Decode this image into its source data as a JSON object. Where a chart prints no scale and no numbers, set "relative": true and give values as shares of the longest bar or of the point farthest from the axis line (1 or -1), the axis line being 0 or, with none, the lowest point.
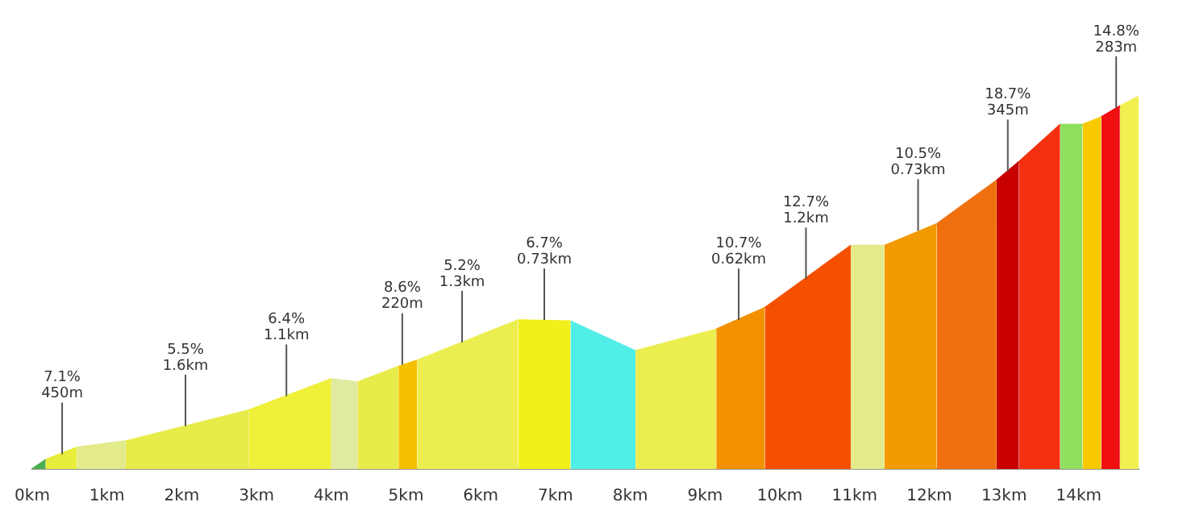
{
  "chart_data": {
    "type": "area",
    "relative": true,
    "legend": false,
    "grid": false,
    "xlim": [
      0,
      14.8
    ],
    "xticks": [
      {
        "value": 0,
        "label": "0km"
      },
      {
        "value": 1,
        "label": "1km"
      },
      {
        "value": 2,
        "label": "2km"
      },
      {
        "value": 3,
        "label": "3km"
      },
      {
        "value": 4,
        "label": "4km"
      },
      {
        "value": 5,
        "label": "5km"
      },
      {
        "value": 6,
        "label": "6km"
      },
      {
        "value": 7,
        "label": "7km"
      },
      {
        "value": 8,
        "label": "8km"
      },
      {
        "value": 9,
        "label": "9km"
      },
      {
        "value": 10,
        "label": "10km"
      },
      {
        "value": 11,
        "label": "11km"
      },
      {
        "value": 12,
        "label": "12km"
      },
      {
        "value": 13,
        "label": "13km"
      },
      {
        "value": 14,
        "label": "14km"
      }
    ],
    "series": [
      {
        "color": "#4caf50",
        "x": [
          0,
          0.18
        ],
        "values": [
          0,
          0.025
        ]
      },
      {
        "color": "#e8ec3a",
        "x": [
          0.18,
          0.6
        ],
        "values": [
          0.025,
          0.058
        ]
      },
      {
        "color": "#e2ea8a",
        "x": [
          0.6,
          1.25
        ],
        "values": [
          0.058,
          0.075
        ]
      },
      {
        "color": "#e8ec4a",
        "x": [
          1.25,
          2.9
        ],
        "values": [
          0.075,
          0.158
        ]
      },
      {
        "color": "#eef03a",
        "x": [
          2.9,
          4.0
        ],
        "values": [
          0.158,
          0.242
        ]
      },
      {
        "color": "#e0eaa0",
        "x": [
          4.0,
          4.35
        ],
        "values": [
          0.242,
          0.233
        ]
      },
      {
        "color": "#e8ec4a",
        "x": [
          4.35,
          4.9
        ],
        "values": [
          0.233,
          0.275
        ]
      },
      {
        "color": "#f5c000",
        "x": [
          4.9,
          5.15
        ],
        "values": [
          0.275,
          0.292
        ]
      },
      {
        "color": "#ecee50",
        "x": [
          5.15,
          6.5
        ],
        "values": [
          0.292,
          0.4
        ]
      },
      {
        "color": "#f2f01a",
        "x": [
          6.5,
          7.2
        ],
        "values": [
          0.4,
          0.397
        ]
      },
      {
        "color": "#50eee6",
        "x": [
          7.2,
          8.07
        ],
        "values": [
          0.397,
          0.317
        ]
      },
      {
        "color": "#ecee50",
        "x": [
          8.07,
          9.15
        ],
        "values": [
          0.317,
          0.375
        ]
      },
      {
        "color": "#f39200",
        "x": [
          9.15,
          9.8
        ],
        "values": [
          0.375,
          0.433
        ]
      },
      {
        "color": "#f45000",
        "x": [
          9.8,
          10.95
        ],
        "values": [
          0.433,
          0.6
        ]
      },
      {
        "color": "#e2ea8a",
        "x": [
          10.95,
          11.4
        ],
        "values": [
          0.6,
          0.6
        ]
      },
      {
        "color": "#f39a00",
        "x": [
          11.4,
          12.1
        ],
        "values": [
          0.6,
          0.658
        ]
      },
      {
        "color": "#f07010",
        "x": [
          12.1,
          12.9
        ],
        "values": [
          0.658,
          0.775
        ]
      },
      {
        "color": "#c80000",
        "x": [
          12.9,
          13.2
        ],
        "values": [
          0.775,
          0.825
        ]
      },
      {
        "color": "#f53010",
        "x": [
          13.2,
          13.75
        ],
        "values": [
          0.825,
          0.925
        ]
      },
      {
        "color": "#90e060",
        "x": [
          13.75,
          14.05
        ],
        "values": [
          0.925,
          0.925
        ]
      },
      {
        "color": "#f8c800",
        "x": [
          14.05,
          14.3
        ],
        "values": [
          0.925,
          0.945
        ]
      },
      {
        "color": "#f01010",
        "x": [
          14.3,
          14.55
        ],
        "values": [
          0.945,
          0.975
        ]
      },
      {
        "color": "#f0f050",
        "x": [
          14.55,
          14.8
        ],
        "values": [
          0.975,
          1
        ]
      }
    ],
    "annotations": [
      {
        "text": "7.1%\n450m",
        "x": 0.4,
        "y": 0.04
      },
      {
        "text": "5.5%\n1.6km",
        "x": 2.05,
        "y": 0.115
      },
      {
        "text": "6.4%\n1.1km",
        "x": 3.4,
        "y": 0.196
      },
      {
        "text": "8.6%\n220m",
        "x": 4.95,
        "y": 0.28
      },
      {
        "text": "5.2%\n1.3km",
        "x": 5.75,
        "y": 0.34
      },
      {
        "text": "6.7%\n0.73km",
        "x": 6.85,
        "y": 0.4
      },
      {
        "text": "10.7%\n0.62km",
        "x": 9.45,
        "y": 0.4
      },
      {
        "text": "12.7%\n1.2km",
        "x": 10.35,
        "y": 0.51
      },
      {
        "text": "10.5%\n0.73km",
        "x": 11.85,
        "y": 0.64
      },
      {
        "text": "18.7%\n345m",
        "x": 13.05,
        "y": 0.8
      },
      {
        "text": "14.8%\n283m",
        "x": 14.5,
        "y": 0.97
      }
    ]
  }
}
